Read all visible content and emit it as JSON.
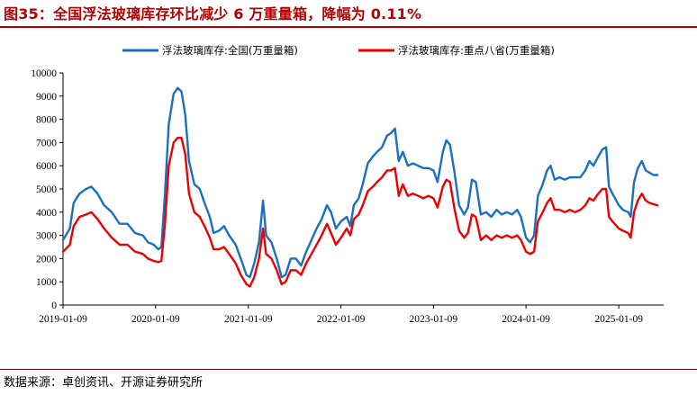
{
  "header": {
    "title": "图35：全国浮法玻璃库存环比减少 6 万重量箱，降幅为 0.11%"
  },
  "footer": {
    "source": "数据来源：卓创资讯、开源证券研究所"
  },
  "colors": {
    "national": "#1a6fbf",
    "key_provinces": "#ee0000",
    "title": "#b40000"
  },
  "chart_data": {
    "type": "line",
    "xlabel": "",
    "ylabel": "",
    "ylim": [
      0,
      10000
    ],
    "yticks": [
      0,
      1000,
      2000,
      3000,
      4000,
      5000,
      6000,
      7000,
      8000,
      9000,
      10000
    ],
    "x_tick_labels": [
      "2019-01-09",
      "2020-01-09",
      "2021-01-09",
      "2022-01-09",
      "2023-01-09",
      "2024-01-09",
      "2025-01-09"
    ],
    "x_range": [
      "2019-01-09",
      "2025-07-05"
    ],
    "legend_position": "top",
    "grid": false,
    "series": [
      {
        "name": "浮法玻璃库存:全国(万重量箱)",
        "color": "#1a6fbf",
        "points": [
          [
            "2019-01-09",
            2800
          ],
          [
            "2019-02-05",
            3300
          ],
          [
            "2019-02-20",
            4400
          ],
          [
            "2019-03-15",
            4800
          ],
          [
            "2019-04-10",
            5000
          ],
          [
            "2019-05-01",
            5100
          ],
          [
            "2019-05-25",
            4800
          ],
          [
            "2019-06-20",
            4300
          ],
          [
            "2019-07-20",
            4000
          ],
          [
            "2019-08-20",
            3500
          ],
          [
            "2019-09-20",
            3500
          ],
          [
            "2019-10-20",
            3100
          ],
          [
            "2019-11-20",
            3000
          ],
          [
            "2019-12-10",
            2700
          ],
          [
            "2020-01-01",
            2600
          ],
          [
            "2020-01-20",
            2400
          ],
          [
            "2020-02-01",
            2500
          ],
          [
            "2020-02-15",
            4800
          ],
          [
            "2020-03-01",
            7800
          ],
          [
            "2020-03-20",
            9100
          ],
          [
            "2020-04-05",
            9350
          ],
          [
            "2020-04-20",
            9200
          ],
          [
            "2020-05-05",
            8200
          ],
          [
            "2020-05-20",
            6200
          ],
          [
            "2020-06-10",
            5200
          ],
          [
            "2020-07-01",
            5000
          ],
          [
            "2020-07-20",
            4400
          ],
          [
            "2020-08-10",
            3800
          ],
          [
            "2020-08-25",
            3100
          ],
          [
            "2020-09-15",
            3200
          ],
          [
            "2020-10-05",
            3400
          ],
          [
            "2020-10-25",
            3000
          ],
          [
            "2020-11-20",
            2600
          ],
          [
            "2020-12-10",
            2000
          ],
          [
            "2021-01-01",
            1300
          ],
          [
            "2021-01-15",
            1200
          ],
          [
            "2021-02-01",
            1800
          ],
          [
            "2021-02-20",
            2700
          ],
          [
            "2021-03-08",
            4500
          ],
          [
            "2021-03-20",
            3000
          ],
          [
            "2021-04-10",
            2700
          ],
          [
            "2021-05-01",
            2000
          ],
          [
            "2021-05-20",
            1200
          ],
          [
            "2021-06-05",
            1300
          ],
          [
            "2021-06-25",
            2000
          ],
          [
            "2021-07-15",
            2000
          ],
          [
            "2021-08-05",
            1700
          ],
          [
            "2021-08-25",
            2300
          ],
          [
            "2021-09-15",
            2800
          ],
          [
            "2021-10-05",
            3300
          ],
          [
            "2021-10-25",
            3700
          ],
          [
            "2021-11-15",
            4300
          ],
          [
            "2021-12-01",
            4000
          ],
          [
            "2021-12-20",
            3300
          ],
          [
            "2022-01-09",
            3600
          ],
          [
            "2022-02-01",
            3800
          ],
          [
            "2022-02-15",
            3400
          ],
          [
            "2022-03-01",
            4300
          ],
          [
            "2022-03-20",
            4600
          ],
          [
            "2022-04-05",
            5200
          ],
          [
            "2022-04-25",
            6100
          ],
          [
            "2022-05-15",
            6400
          ],
          [
            "2022-06-01",
            6600
          ],
          [
            "2022-06-20",
            6800
          ],
          [
            "2022-07-10",
            7300
          ],
          [
            "2022-07-25",
            7400
          ],
          [
            "2022-08-10",
            7600
          ],
          [
            "2022-08-25",
            6200
          ],
          [
            "2022-09-10",
            6600
          ],
          [
            "2022-09-30",
            6000
          ],
          [
            "2022-10-20",
            6100
          ],
          [
            "2022-11-10",
            6000
          ],
          [
            "2022-11-30",
            5900
          ],
          [
            "2022-12-20",
            5900
          ],
          [
            "2023-01-09",
            5800
          ],
          [
            "2023-01-25",
            5300
          ],
          [
            "2023-02-15",
            6600
          ],
          [
            "2023-03-01",
            7100
          ],
          [
            "2023-03-15",
            6900
          ],
          [
            "2023-04-01",
            5800
          ],
          [
            "2023-04-20",
            4300
          ],
          [
            "2023-05-10",
            3900
          ],
          [
            "2023-05-25",
            4200
          ],
          [
            "2023-06-10",
            5400
          ],
          [
            "2023-06-25",
            5300
          ],
          [
            "2023-07-15",
            3900
          ],
          [
            "2023-08-05",
            4000
          ],
          [
            "2023-08-25",
            3800
          ],
          [
            "2023-09-15",
            4100
          ],
          [
            "2023-10-05",
            3900
          ],
          [
            "2023-10-25",
            4000
          ],
          [
            "2023-11-15",
            3900
          ],
          [
            "2023-12-05",
            4100
          ],
          [
            "2023-12-20",
            3800
          ],
          [
            "2024-01-09",
            2900
          ],
          [
            "2024-01-25",
            2700
          ],
          [
            "2024-02-10",
            3000
          ],
          [
            "2024-02-25",
            4700
          ],
          [
            "2024-03-15",
            5200
          ],
          [
            "2024-04-01",
            5800
          ],
          [
            "2024-04-15",
            6000
          ],
          [
            "2024-05-01",
            5400
          ],
          [
            "2024-05-20",
            5500
          ],
          [
            "2024-06-10",
            5400
          ],
          [
            "2024-06-30",
            5500
          ],
          [
            "2024-07-20",
            5500
          ],
          [
            "2024-08-10",
            5500
          ],
          [
            "2024-08-30",
            5800
          ],
          [
            "2024-09-15",
            6200
          ],
          [
            "2024-10-01",
            6000
          ],
          [
            "2024-10-20",
            6400
          ],
          [
            "2024-11-05",
            6700
          ],
          [
            "2024-11-20",
            6800
          ],
          [
            "2024-12-01",
            5100
          ],
          [
            "2024-12-15",
            4800
          ],
          [
            "2025-01-09",
            4300
          ],
          [
            "2025-01-25",
            4100
          ],
          [
            "2025-02-15",
            4000
          ],
          [
            "2025-02-25",
            3800
          ],
          [
            "2025-03-10",
            5300
          ],
          [
            "2025-03-25",
            5900
          ],
          [
            "2025-04-10",
            6200
          ],
          [
            "2025-04-25",
            5800
          ],
          [
            "2025-05-10",
            5700
          ],
          [
            "2025-05-25",
            5600
          ],
          [
            "2025-06-10",
            5600
          ]
        ]
      },
      {
        "name": "浮法玻璃库存:重点八省(万重量箱)",
        "color": "#ee0000",
        "points": [
          [
            "2019-01-09",
            2300
          ],
          [
            "2019-02-05",
            2600
          ],
          [
            "2019-02-20",
            3400
          ],
          [
            "2019-03-15",
            3800
          ],
          [
            "2019-04-10",
            3900
          ],
          [
            "2019-05-01",
            4000
          ],
          [
            "2019-05-25",
            3700
          ],
          [
            "2019-06-20",
            3300
          ],
          [
            "2019-07-20",
            2900
          ],
          [
            "2019-08-20",
            2600
          ],
          [
            "2019-09-20",
            2600
          ],
          [
            "2019-10-20",
            2300
          ],
          [
            "2019-11-20",
            2200
          ],
          [
            "2019-12-10",
            2000
          ],
          [
            "2020-01-01",
            1900
          ],
          [
            "2020-01-20",
            1850
          ],
          [
            "2020-02-01",
            1900
          ],
          [
            "2020-02-15",
            3500
          ],
          [
            "2020-03-01",
            6000
          ],
          [
            "2020-03-20",
            7000
          ],
          [
            "2020-04-05",
            7200
          ],
          [
            "2020-04-20",
            7200
          ],
          [
            "2020-05-05",
            6500
          ],
          [
            "2020-05-20",
            4800
          ],
          [
            "2020-06-10",
            4000
          ],
          [
            "2020-07-01",
            3800
          ],
          [
            "2020-07-20",
            3400
          ],
          [
            "2020-08-10",
            2900
          ],
          [
            "2020-08-25",
            2400
          ],
          [
            "2020-09-15",
            2400
          ],
          [
            "2020-10-05",
            2500
          ],
          [
            "2020-10-25",
            2200
          ],
          [
            "2020-11-20",
            1800
          ],
          [
            "2020-12-10",
            1300
          ],
          [
            "2021-01-01",
            900
          ],
          [
            "2021-01-15",
            800
          ],
          [
            "2021-02-01",
            1200
          ],
          [
            "2021-02-20",
            2000
          ],
          [
            "2021-03-08",
            3300
          ],
          [
            "2021-03-20",
            2200
          ],
          [
            "2021-04-10",
            2000
          ],
          [
            "2021-05-01",
            1500
          ],
          [
            "2021-05-20",
            900
          ],
          [
            "2021-06-05",
            1000
          ],
          [
            "2021-06-25",
            1500
          ],
          [
            "2021-07-15",
            1500
          ],
          [
            "2021-08-05",
            1300
          ],
          [
            "2021-08-25",
            1800
          ],
          [
            "2021-09-15",
            2200
          ],
          [
            "2021-10-05",
            2600
          ],
          [
            "2021-10-25",
            3000
          ],
          [
            "2021-11-15",
            3500
          ],
          [
            "2021-12-01",
            3100
          ],
          [
            "2021-12-20",
            2600
          ],
          [
            "2022-01-09",
            2900
          ],
          [
            "2022-02-01",
            3300
          ],
          [
            "2022-02-15",
            3000
          ],
          [
            "2022-03-01",
            3700
          ],
          [
            "2022-03-20",
            3900
          ],
          [
            "2022-04-05",
            4300
          ],
          [
            "2022-04-25",
            4900
          ],
          [
            "2022-05-15",
            5100
          ],
          [
            "2022-06-01",
            5300
          ],
          [
            "2022-06-20",
            5500
          ],
          [
            "2022-07-10",
            5800
          ],
          [
            "2022-07-25",
            5800
          ],
          [
            "2022-08-10",
            5900
          ],
          [
            "2022-08-25",
            4700
          ],
          [
            "2022-09-10",
            5200
          ],
          [
            "2022-09-30",
            4700
          ],
          [
            "2022-10-20",
            4800
          ],
          [
            "2022-11-10",
            4700
          ],
          [
            "2022-11-30",
            4600
          ],
          [
            "2022-12-20",
            4700
          ],
          [
            "2023-01-09",
            4600
          ],
          [
            "2023-01-25",
            4200
          ],
          [
            "2023-02-15",
            5100
          ],
          [
            "2023-03-01",
            5400
          ],
          [
            "2023-03-15",
            5300
          ],
          [
            "2023-04-01",
            4200
          ],
          [
            "2023-04-20",
            3200
          ],
          [
            "2023-05-10",
            2900
          ],
          [
            "2023-05-25",
            3100
          ],
          [
            "2023-06-10",
            3900
          ],
          [
            "2023-06-25",
            3800
          ],
          [
            "2023-07-15",
            2800
          ],
          [
            "2023-08-05",
            3000
          ],
          [
            "2023-08-25",
            2800
          ],
          [
            "2023-09-15",
            3000
          ],
          [
            "2023-10-05",
            2900
          ],
          [
            "2023-10-25",
            3000
          ],
          [
            "2023-11-15",
            2900
          ],
          [
            "2023-12-05",
            3000
          ],
          [
            "2023-12-20",
            2800
          ],
          [
            "2024-01-09",
            2300
          ],
          [
            "2024-01-25",
            2200
          ],
          [
            "2024-02-10",
            2300
          ],
          [
            "2024-02-25",
            3600
          ],
          [
            "2024-03-15",
            4000
          ],
          [
            "2024-04-01",
            4400
          ],
          [
            "2024-04-15",
            4600
          ],
          [
            "2024-05-01",
            4100
          ],
          [
            "2024-05-20",
            4100
          ],
          [
            "2024-06-10",
            4000
          ],
          [
            "2024-06-30",
            4100
          ],
          [
            "2024-07-20",
            4000
          ],
          [
            "2024-08-10",
            4100
          ],
          [
            "2024-08-30",
            4300
          ],
          [
            "2024-09-15",
            4600
          ],
          [
            "2024-10-01",
            4500
          ],
          [
            "2024-10-20",
            4800
          ],
          [
            "2024-11-05",
            5000
          ],
          [
            "2024-11-20",
            5000
          ],
          [
            "2024-12-01",
            3800
          ],
          [
            "2024-12-15",
            3600
          ],
          [
            "2025-01-09",
            3300
          ],
          [
            "2025-01-25",
            3200
          ],
          [
            "2025-02-15",
            3100
          ],
          [
            "2025-02-25",
            2900
          ],
          [
            "2025-03-10",
            4000
          ],
          [
            "2025-03-25",
            4500
          ],
          [
            "2025-04-10",
            4800
          ],
          [
            "2025-04-25",
            4500
          ],
          [
            "2025-05-10",
            4400
          ],
          [
            "2025-05-25",
            4350
          ],
          [
            "2025-06-10",
            4300
          ]
        ]
      }
    ]
  }
}
